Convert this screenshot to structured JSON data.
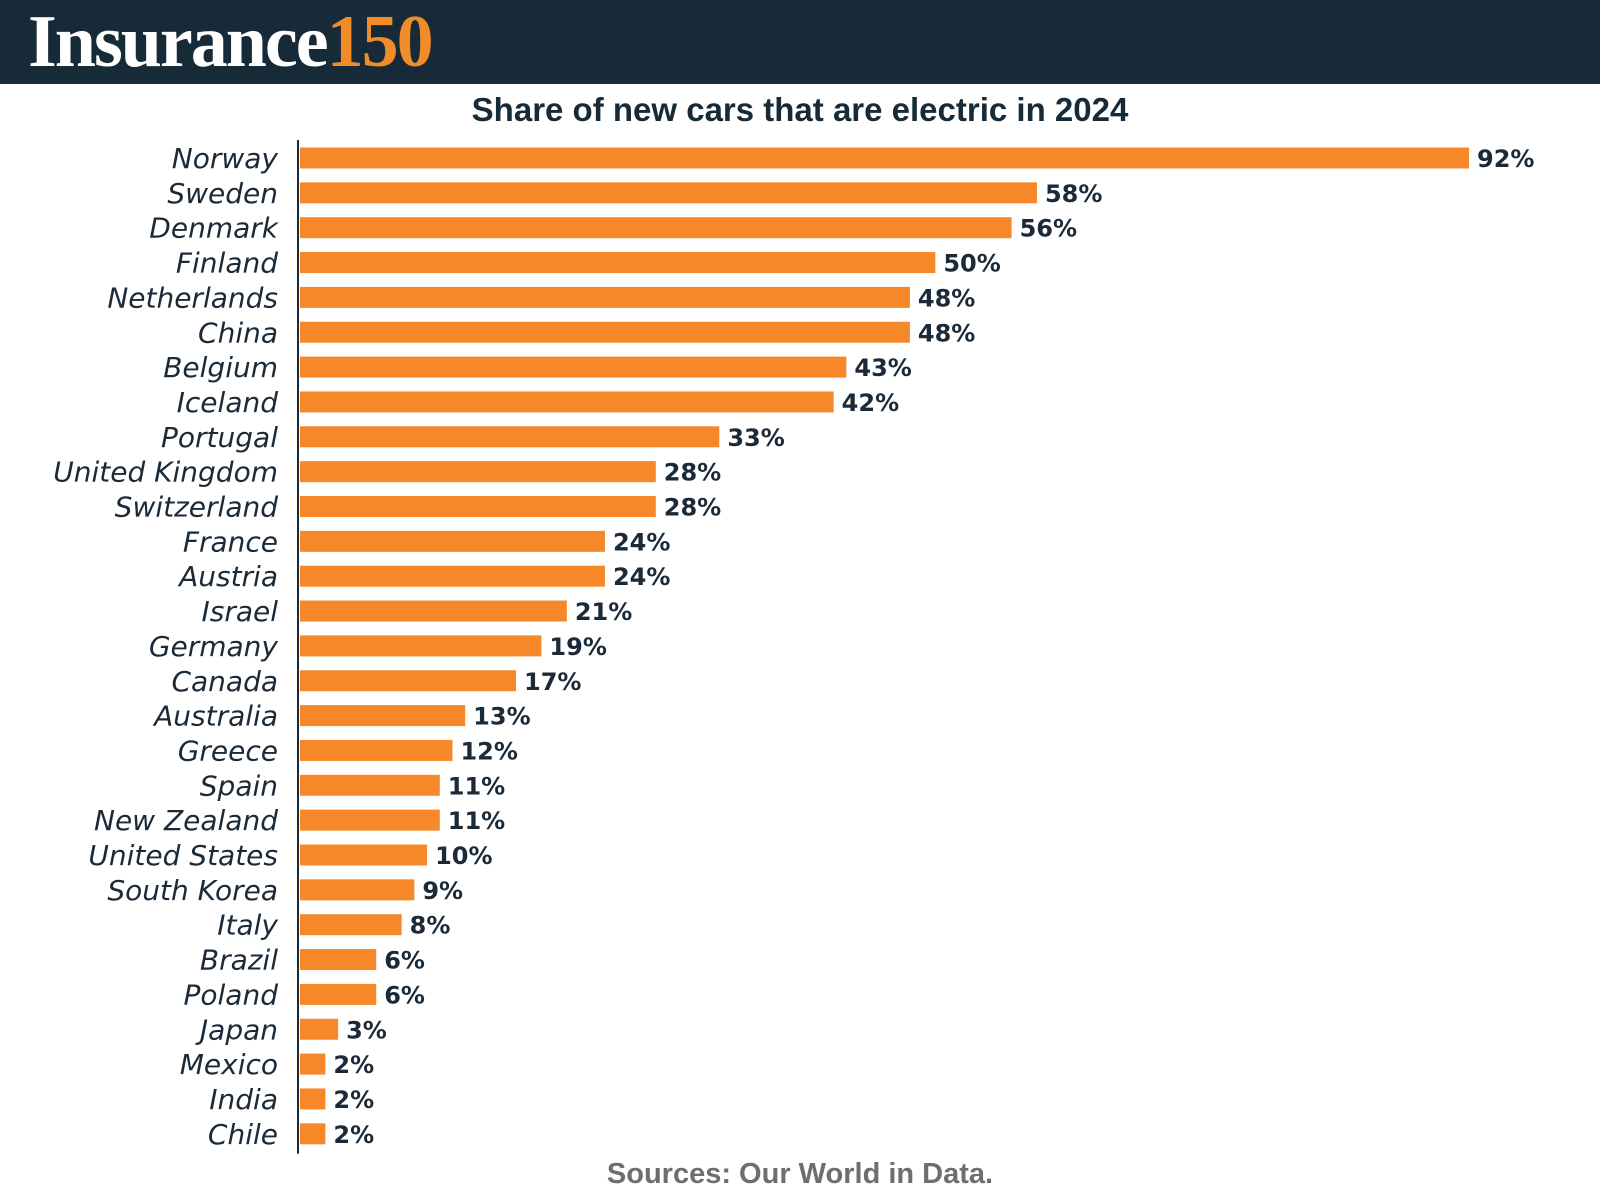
{
  "brand": {
    "name": "Insurance",
    "number": "150"
  },
  "colors": {
    "header_bg": "#162a38",
    "accent": "#f28c28",
    "bar": "#f7882a",
    "text": "#1b2a38",
    "source": "#6d6e71"
  },
  "chart_data": {
    "type": "bar",
    "orientation": "horizontal",
    "title": "Share of new cars that are electric in 2024",
    "xlabel": "",
    "ylabel": "",
    "xlim": [
      0,
      100
    ],
    "categories": [
      "Norway",
      "Sweden",
      "Denmark",
      "Finland",
      "Netherlands",
      "China",
      "Belgium",
      "Iceland",
      "Portugal",
      "United Kingdom",
      "Switzerland",
      "France",
      "Austria",
      "Israel",
      "Germany",
      "Canada",
      "Australia",
      "Greece",
      "Spain",
      "New Zealand",
      "United States",
      "South Korea",
      "Italy",
      "Brazil",
      "Poland",
      "Japan",
      "Mexico",
      "India",
      "Chile"
    ],
    "values": [
      92,
      58,
      56,
      50,
      48,
      48,
      43,
      42,
      33,
      28,
      28,
      24,
      24,
      21,
      19,
      17,
      13,
      12,
      11,
      11,
      10,
      9,
      8,
      6,
      6,
      3,
      2,
      2,
      2
    ],
    "value_labels": [
      "92%",
      "58%",
      "56%",
      "50%",
      "48%",
      "48%",
      "43%",
      "42%",
      "33%",
      "28%",
      "28%",
      "24%",
      "24%",
      "21%",
      "19%",
      "17%",
      "13%",
      "12%",
      "11%",
      "11%",
      "10%",
      "9%",
      "8%",
      "6%",
      "6%",
      "3%",
      "2%",
      "2%",
      "2%"
    ],
    "source": "Sources: Our World in Data."
  }
}
